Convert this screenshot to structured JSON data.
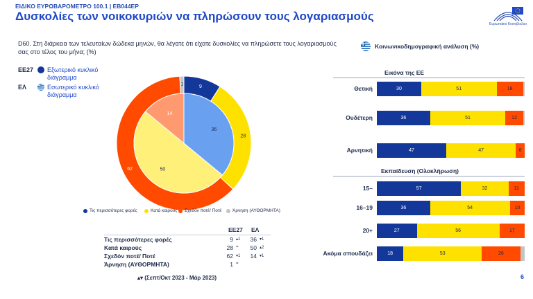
{
  "header": {
    "subtitle": "ΕΙΔΙΚΟ ΕΥΡΩΒΑΡΟΜΕΤΡΟ 100.1 | EB044EP",
    "title": "Δυσκολίες των νοικοκυριών να πληρώσουν τους λογαριασμούς",
    "logo_text": "Ευρωπαϊκό Κοινοβούλιο"
  },
  "question": "D60. Στη διάρκεια των τελευταίων δώδεκα μηνών, θα λέγατε ότι είχατε δυσκολίες να πληρώσετε τους λογαριασμούς σας στο τέλος του μήνα; (%)",
  "ring_legend": [
    {
      "code": "EE27",
      "label": "Εξωτερικό κυκλικό διάγραμμα"
    },
    {
      "code": "ΕΛ",
      "label": "Εσωτερικό κυκλικό διάγραμμα"
    }
  ],
  "colors": {
    "most_times": "#14389a",
    "sometimes": "#ffe100",
    "almost_never": "#ff4a00",
    "refusal": "#c4c4c4",
    "inner_most_times": "#6aa0f0",
    "inner_sometimes": "#fff07a",
    "inner_almost_never": "#ff9a70"
  },
  "footnote": "▴▾ (Σεπτ/Οκτ 2023 - Μάρ 2023)",
  "page_number": "6",
  "table": {
    "headers": [
      "EE27",
      "ΕΛ"
    ],
    "rows": [
      {
        "label": "Τις περισσότερες φορές",
        "eu": "9",
        "eu_trend": "▴1",
        "gr": "36",
        "gr_trend": "▾1"
      },
      {
        "label": "Κατά καιρούς",
        "eu": "28",
        "eu_trend": "=",
        "gr": "50",
        "gr_trend": "▴2"
      },
      {
        "label": "Σχεδόν ποτέ/ Ποτέ",
        "eu": "62",
        "eu_trend": "▾1",
        "gr": "14",
        "gr_trend": "▾1"
      },
      {
        "label": "Άρνηση (ΑΥΘΟΡΜΗΤΑ)",
        "eu": "1",
        "eu_trend": "=",
        "gr": "",
        "gr_trend": ""
      }
    ]
  },
  "right_title": "Κοινωνικοδημογραφική ανάλυση (%)",
  "chart_data": [
    {
      "type": "pie",
      "subtype": "donut",
      "series": [
        {
          "name": "EE27",
          "ring": "outer",
          "values": [
            9,
            28,
            62,
            1
          ]
        },
        {
          "name": "ΕΛ",
          "ring": "inner",
          "values": [
            36,
            50,
            14,
            0
          ]
        }
      ],
      "categories": [
        "Τις περισσότερες φορές",
        "Κατά καιρούς",
        "Σχεδόν ποτέ/ Ποτέ",
        "Άρνηση (ΑΥΘΟΡΜΗΤΑ)"
      ]
    },
    {
      "type": "bar",
      "orientation": "horizontal",
      "stacked": true,
      "groups": [
        {
          "title": "Εικόνα της ΕΕ",
          "categories": [
            "Θετική",
            "Ουδέτερη",
            "Αρνητική"
          ],
          "series": [
            {
              "values": [
                30,
                36,
                47
              ]
            },
            {
              "values": [
                51,
                51,
                47
              ]
            },
            {
              "values": [
                18,
                12,
                6
              ]
            },
            {
              "values": [
                1,
                1,
                0
              ]
            }
          ]
        },
        {
          "title": "Εκπαίδευση (Ολοκλήρωση)",
          "categories": [
            "15–",
            "16–19",
            "20+",
            "Ακόμα σπουδάζει"
          ],
          "series": [
            {
              "values": [
                57,
                36,
                27,
                18
              ]
            },
            {
              "values": [
                32,
                54,
                56,
                53
              ]
            },
            {
              "values": [
                11,
                10,
                17,
                26
              ]
            },
            {
              "values": [
                0,
                0,
                0,
                3
              ]
            }
          ]
        }
      ],
      "xlim": [
        0,
        100
      ]
    }
  ]
}
